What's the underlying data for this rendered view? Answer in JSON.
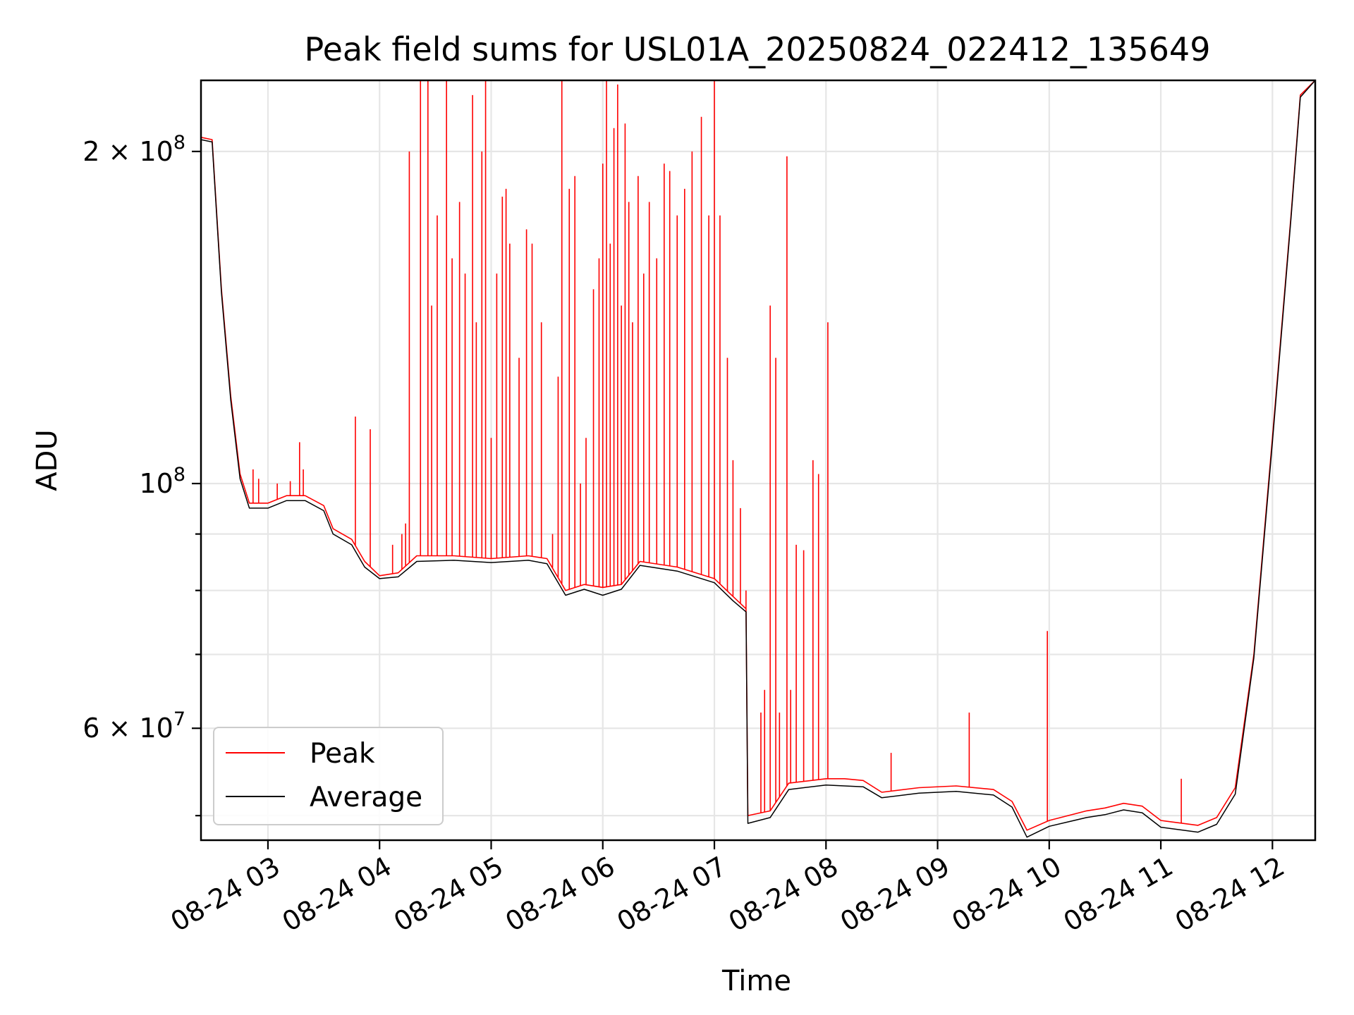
{
  "chart_data": {
    "type": "line",
    "title": "Peak field sums for USL01A_20250824_022412_135649",
    "xlabel": "Time",
    "ylabel": "ADU",
    "x_scale": "time",
    "y_scale": "log",
    "xlim": [
      "2025-08-24 02:24",
      "2025-08-24 12:23"
    ],
    "ylim": [
      47500000,
      232000000
    ],
    "grid": true,
    "legend_position": "lower-left",
    "x_ticks": [
      {
        "t": "2025-08-24 03:00",
        "label": "08-24 03"
      },
      {
        "t": "2025-08-24 04:00",
        "label": "08-24 04"
      },
      {
        "t": "2025-08-24 05:00",
        "label": "08-24 05"
      },
      {
        "t": "2025-08-24 06:00",
        "label": "08-24 06"
      },
      {
        "t": "2025-08-24 07:00",
        "label": "08-24 07"
      },
      {
        "t": "2025-08-24 08:00",
        "label": "08-24 08"
      },
      {
        "t": "2025-08-24 09:00",
        "label": "08-24 09"
      },
      {
        "t": "2025-08-24 10:00",
        "label": "08-24 10"
      },
      {
        "t": "2025-08-24 11:00",
        "label": "08-24 11"
      },
      {
        "t": "2025-08-24 12:00",
        "label": "08-24 12"
      }
    ],
    "y_major_ticks": [
      {
        "value": 60000000,
        "mantissa": "6 × 10",
        "exponent": "7"
      },
      {
        "value": 100000000,
        "mantissa": "10",
        "exponent": "8"
      },
      {
        "value": 200000000,
        "mantissa": "2 × 10",
        "exponent": "8"
      }
    ],
    "y_minor_ticks": [
      50000000,
      70000000,
      80000000,
      90000000
    ],
    "series": [
      {
        "name": "Peak",
        "color": "#ff0000",
        "points": [
          [
            "2025-08-24 02:24",
            206000000
          ],
          [
            "2025-08-24 02:30",
            205000000
          ],
          [
            "2025-08-24 02:35",
            150000000
          ],
          [
            "2025-08-24 02:40",
            120000000
          ],
          [
            "2025-08-24 02:45",
            102000000
          ],
          [
            "2025-08-24 02:50",
            96000000
          ],
          [
            "2025-08-24 03:00",
            96000000
          ],
          [
            "2025-08-24 03:10",
            97500000
          ],
          [
            "2025-08-24 03:20",
            97500000
          ],
          [
            "2025-08-24 03:30",
            95500000
          ],
          [
            "2025-08-24 03:35",
            91000000
          ],
          [
            "2025-08-24 03:45",
            89000000
          ],
          [
            "2025-08-24 03:52",
            85000000
          ],
          [
            "2025-08-24 04:00",
            82500000
          ],
          [
            "2025-08-24 04:10",
            83000000
          ],
          [
            "2025-08-24 04:20",
            86000000
          ],
          [
            "2025-08-24 04:40",
            86000000
          ],
          [
            "2025-08-24 05:00",
            85500000
          ],
          [
            "2025-08-24 05:20",
            86000000
          ],
          [
            "2025-08-24 05:30",
            85500000
          ],
          [
            "2025-08-24 05:40",
            80000000
          ],
          [
            "2025-08-24 05:50",
            81000000
          ],
          [
            "2025-08-24 06:00",
            80500000
          ],
          [
            "2025-08-24 06:10",
            81000000
          ],
          [
            "2025-08-24 06:20",
            85000000
          ],
          [
            "2025-08-24 06:40",
            84000000
          ],
          [
            "2025-08-24 07:00",
            82000000
          ],
          [
            "2025-08-24 07:10",
            79000000
          ],
          [
            "2025-08-24 07:17",
            77000000
          ],
          [
            "2025-08-24 07:18",
            50000000
          ],
          [
            "2025-08-24 07:30",
            50500000
          ],
          [
            "2025-08-24 07:40",
            53500000
          ],
          [
            "2025-08-24 08:00",
            54000000
          ],
          [
            "2025-08-24 08:10",
            54000000
          ],
          [
            "2025-08-24 08:20",
            53800000
          ],
          [
            "2025-08-24 08:30",
            52500000
          ],
          [
            "2025-08-24 08:50",
            53000000
          ],
          [
            "2025-08-24 09:10",
            53200000
          ],
          [
            "2025-08-24 09:30",
            52800000
          ],
          [
            "2025-08-24 09:40",
            51500000
          ],
          [
            "2025-08-24 09:48",
            48500000
          ],
          [
            "2025-08-24 10:00",
            49500000
          ],
          [
            "2025-08-24 10:20",
            50500000
          ],
          [
            "2025-08-24 10:30",
            50800000
          ],
          [
            "2025-08-24 10:40",
            51300000
          ],
          [
            "2025-08-24 10:50",
            51000000
          ],
          [
            "2025-08-24 11:00",
            49500000
          ],
          [
            "2025-08-24 11:20",
            49000000
          ],
          [
            "2025-08-24 11:30",
            49800000
          ],
          [
            "2025-08-24 11:40",
            53000000
          ],
          [
            "2025-08-24 11:50",
            70000000
          ],
          [
            "2025-08-24 12:00",
            110000000
          ],
          [
            "2025-08-24 12:10",
            175000000
          ],
          [
            "2025-08-24 12:15",
            225000000
          ],
          [
            "2025-08-24 12:23",
            232000000
          ]
        ]
      },
      {
        "name": "Average",
        "color": "#000000",
        "points": [
          [
            "2025-08-24 02:24",
            205000000
          ],
          [
            "2025-08-24 02:30",
            204000000
          ],
          [
            "2025-08-24 02:35",
            149000000
          ],
          [
            "2025-08-24 02:40",
            119000000
          ],
          [
            "2025-08-24 02:45",
            101000000
          ],
          [
            "2025-08-24 02:50",
            95000000
          ],
          [
            "2025-08-24 03:00",
            95000000
          ],
          [
            "2025-08-24 03:10",
            96500000
          ],
          [
            "2025-08-24 03:20",
            96500000
          ],
          [
            "2025-08-24 03:30",
            94500000
          ],
          [
            "2025-08-24 03:35",
            90000000
          ],
          [
            "2025-08-24 03:45",
            88000000
          ],
          [
            "2025-08-24 03:52",
            84000000
          ],
          [
            "2025-08-24 04:00",
            82000000
          ],
          [
            "2025-08-24 04:10",
            82300000
          ],
          [
            "2025-08-24 04:20",
            85000000
          ],
          [
            "2025-08-24 04:40",
            85200000
          ],
          [
            "2025-08-24 05:00",
            84800000
          ],
          [
            "2025-08-24 05:20",
            85200000
          ],
          [
            "2025-08-24 05:30",
            84600000
          ],
          [
            "2025-08-24 05:40",
            79200000
          ],
          [
            "2025-08-24 05:50",
            80200000
          ],
          [
            "2025-08-24 06:00",
            79200000
          ],
          [
            "2025-08-24 06:10",
            80200000
          ],
          [
            "2025-08-24 06:20",
            84300000
          ],
          [
            "2025-08-24 06:40",
            83300000
          ],
          [
            "2025-08-24 07:00",
            81300000
          ],
          [
            "2025-08-24 07:10",
            78300000
          ],
          [
            "2025-08-24 07:17",
            76500000
          ],
          [
            "2025-08-24 07:18",
            49200000
          ],
          [
            "2025-08-24 07:30",
            49800000
          ],
          [
            "2025-08-24 07:40",
            52800000
          ],
          [
            "2025-08-24 08:00",
            53300000
          ],
          [
            "2025-08-24 08:10",
            53200000
          ],
          [
            "2025-08-24 08:20",
            53100000
          ],
          [
            "2025-08-24 08:30",
            51900000
          ],
          [
            "2025-08-24 08:50",
            52400000
          ],
          [
            "2025-08-24 09:10",
            52600000
          ],
          [
            "2025-08-24 09:30",
            52200000
          ],
          [
            "2025-08-24 09:40",
            50900000
          ],
          [
            "2025-08-24 09:48",
            47800000
          ],
          [
            "2025-08-24 10:00",
            48900000
          ],
          [
            "2025-08-24 10:20",
            49800000
          ],
          [
            "2025-08-24 10:30",
            50100000
          ],
          [
            "2025-08-24 10:40",
            50600000
          ],
          [
            "2025-08-24 10:50",
            50300000
          ],
          [
            "2025-08-24 11:00",
            48800000
          ],
          [
            "2025-08-24 11:20",
            48300000
          ],
          [
            "2025-08-24 11:30",
            49100000
          ],
          [
            "2025-08-24 11:40",
            52300000
          ],
          [
            "2025-08-24 11:50",
            69500000
          ],
          [
            "2025-08-24 12:00",
            109000000
          ],
          [
            "2025-08-24 12:10",
            174000000
          ],
          [
            "2025-08-24 12:15",
            224000000
          ],
          [
            "2025-08-24 12:23",
            232000000
          ]
        ]
      }
    ],
    "peak_spikes": [
      [
        "2025-08-24 02:35",
        150000000
      ],
      [
        "2025-08-24 02:52",
        103000000
      ],
      [
        "2025-08-24 02:55",
        101000000
      ],
      [
        "2025-08-24 03:05",
        100000000
      ],
      [
        "2025-08-24 03:12",
        100500000
      ],
      [
        "2025-08-24 03:17",
        109000000
      ],
      [
        "2025-08-24 03:19",
        103000000
      ],
      [
        "2025-08-24 03:47",
        115000000
      ],
      [
        "2025-08-24 03:55",
        112000000
      ],
      [
        "2025-08-24 04:07",
        88000000
      ],
      [
        "2025-08-24 04:12",
        90000000
      ],
      [
        "2025-08-24 04:14",
        92000000
      ],
      [
        "2025-08-24 04:16",
        200000000
      ],
      [
        "2025-08-24 04:22",
        232000000
      ],
      [
        "2025-08-24 04:26",
        232000000
      ],
      [
        "2025-08-24 04:28",
        145000000
      ],
      [
        "2025-08-24 04:31",
        175000000
      ],
      [
        "2025-08-24 04:36",
        232000000
      ],
      [
        "2025-08-24 04:39",
        160000000
      ],
      [
        "2025-08-24 04:43",
        180000000
      ],
      [
        "2025-08-24 04:46",
        155000000
      ],
      [
        "2025-08-24 04:50",
        225000000
      ],
      [
        "2025-08-24 04:52",
        140000000
      ],
      [
        "2025-08-24 04:55",
        200000000
      ],
      [
        "2025-08-24 04:57",
        232000000
      ],
      [
        "2025-08-24 05:00",
        110000000
      ],
      [
        "2025-08-24 05:03",
        155000000
      ],
      [
        "2025-08-24 05:06",
        182000000
      ],
      [
        "2025-08-24 05:08",
        185000000
      ],
      [
        "2025-08-24 05:10",
        165000000
      ],
      [
        "2025-08-24 05:15",
        130000000
      ],
      [
        "2025-08-24 05:19",
        170000000
      ],
      [
        "2025-08-24 05:22",
        165000000
      ],
      [
        "2025-08-24 05:27",
        140000000
      ],
      [
        "2025-08-24 05:33",
        90000000
      ],
      [
        "2025-08-24 05:36",
        125000000
      ],
      [
        "2025-08-24 05:38",
        232000000
      ],
      [
        "2025-08-24 05:42",
        185000000
      ],
      [
        "2025-08-24 05:45",
        190000000
      ],
      [
        "2025-08-24 05:48",
        100000000
      ],
      [
        "2025-08-24 05:51",
        110000000
      ],
      [
        "2025-08-24 05:55",
        150000000
      ],
      [
        "2025-08-24 05:58",
        160000000
      ],
      [
        "2025-08-24 06:00",
        195000000
      ],
      [
        "2025-08-24 06:02",
        232000000
      ],
      [
        "2025-08-24 06:04",
        165000000
      ],
      [
        "2025-08-24 06:06",
        210000000
      ],
      [
        "2025-08-24 06:08",
        230000000
      ],
      [
        "2025-08-24 06:10",
        145000000
      ],
      [
        "2025-08-24 06:12",
        212000000
      ],
      [
        "2025-08-24 06:14",
        180000000
      ],
      [
        "2025-08-24 06:16",
        140000000
      ],
      [
        "2025-08-24 06:19",
        190000000
      ],
      [
        "2025-08-24 06:22",
        155000000
      ],
      [
        "2025-08-24 06:25",
        180000000
      ],
      [
        "2025-08-24 06:29",
        160000000
      ],
      [
        "2025-08-24 06:33",
        195000000
      ],
      [
        "2025-08-24 06:36",
        192000000
      ],
      [
        "2025-08-24 06:40",
        175000000
      ],
      [
        "2025-08-24 06:44",
        185000000
      ],
      [
        "2025-08-24 06:48",
        200000000
      ],
      [
        "2025-08-24 06:53",
        215000000
      ],
      [
        "2025-08-24 06:57",
        175000000
      ],
      [
        "2025-08-24 07:00",
        232000000
      ],
      [
        "2025-08-24 07:03",
        175000000
      ],
      [
        "2025-08-24 07:07",
        130000000
      ],
      [
        "2025-08-24 07:10",
        105000000
      ],
      [
        "2025-08-24 07:14",
        95000000
      ],
      [
        "2025-08-24 07:17",
        80000000
      ],
      [
        "2025-08-24 07:25",
        62000000
      ],
      [
        "2025-08-24 07:27",
        65000000
      ],
      [
        "2025-08-24 07:30",
        145000000
      ],
      [
        "2025-08-24 07:33",
        130000000
      ],
      [
        "2025-08-24 07:35",
        62000000
      ],
      [
        "2025-08-24 07:39",
        198000000
      ],
      [
        "2025-08-24 07:41",
        65000000
      ],
      [
        "2025-08-24 07:44",
        88000000
      ],
      [
        "2025-08-24 07:48",
        87000000
      ],
      [
        "2025-08-24 07:53",
        105000000
      ],
      [
        "2025-08-24 07:56",
        102000000
      ],
      [
        "2025-08-24 08:01",
        140000000
      ],
      [
        "2025-08-24 08:35",
        57000000
      ],
      [
        "2025-08-24 09:17",
        62000000
      ],
      [
        "2025-08-24 09:59",
        73500000
      ],
      [
        "2025-08-24 11:11",
        54000000
      ]
    ]
  },
  "legend": {
    "peak_label": "Peak",
    "average_label": "Average"
  }
}
